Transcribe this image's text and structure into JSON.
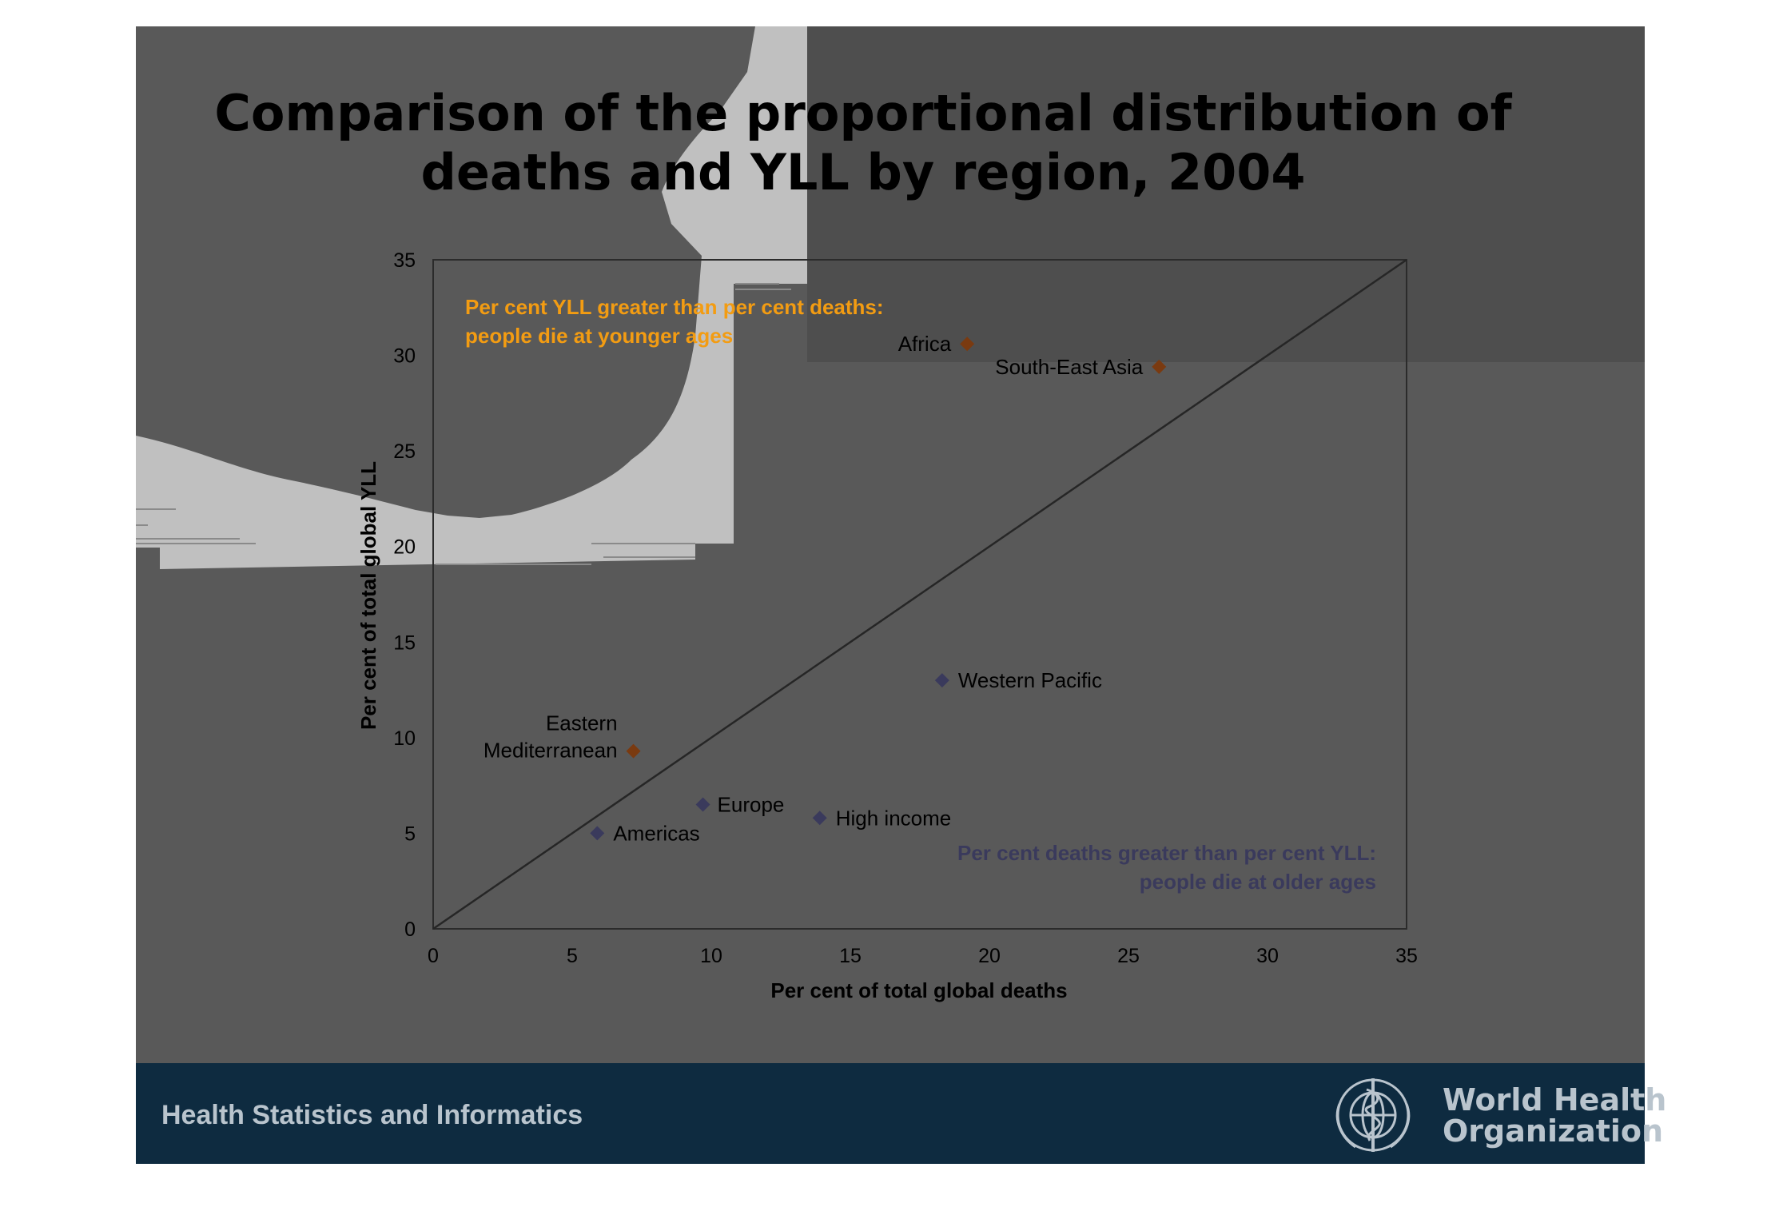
{
  "slide": {
    "title_lines": [
      "Comparison of the proportional distribution of",
      "deaths and YLL by region, 2004"
    ],
    "footer_left": "Health Statistics and Informatics",
    "footer_logo_lines": [
      "World Health",
      "Organization"
    ],
    "logo_icon": "who-emblem-icon",
    "colors": {
      "slide_bg": "#595959",
      "footer_bg": "#0e2b40",
      "footer_text": "#b9c4cd",
      "younger_marker": "#7a3a10",
      "older_marker": "#3a3a5c",
      "note_younger": "#f39c12",
      "note_older": "#3a3a5c",
      "map_light": "#c0c0c0"
    }
  },
  "chart_data": {
    "type": "scatter",
    "title": "Comparison of the proportional distribution of deaths and YLL by region, 2004",
    "xlabel": "Per cent of total global deaths",
    "ylabel": "Per cent of total global YLL",
    "xlim": [
      0,
      35
    ],
    "ylim": [
      0,
      35
    ],
    "xticks": [
      "0",
      "5",
      "10",
      "15",
      "20",
      "25",
      "30",
      "35"
    ],
    "yticks": [
      "0",
      "5",
      "10",
      "15",
      "20",
      "25",
      "30",
      "35"
    ],
    "grid": false,
    "reference_line": {
      "from": [
        0,
        0
      ],
      "to": [
        35,
        35
      ]
    },
    "points": [
      {
        "label": "Africa",
        "x": 19.2,
        "y": 30.6,
        "group": "younger"
      },
      {
        "label": "South-East Asia",
        "x": 26.1,
        "y": 29.4,
        "group": "younger"
      },
      {
        "label": "Western Pacific",
        "x": 18.3,
        "y": 13.0,
        "group": "older"
      },
      {
        "label_lines": [
          "Eastern",
          "Mediterranean"
        ],
        "x": 7.2,
        "y": 9.3,
        "group": "younger"
      },
      {
        "label": "Europe",
        "x": 9.7,
        "y": 6.5,
        "group": "older"
      },
      {
        "label": "High income",
        "x": 13.9,
        "y": 5.8,
        "group": "older"
      },
      {
        "label": "Americas",
        "x": 5.9,
        "y": 5.0,
        "group": "older"
      }
    ],
    "annotations": [
      {
        "lines": [
          "Per cent YLL greater than per cent deaths:",
          "people die at younger ages"
        ],
        "group": "younger"
      },
      {
        "lines": [
          "Per cent deaths greater than per cent YLL:",
          "people die at older ages"
        ],
        "group": "older"
      }
    ]
  }
}
